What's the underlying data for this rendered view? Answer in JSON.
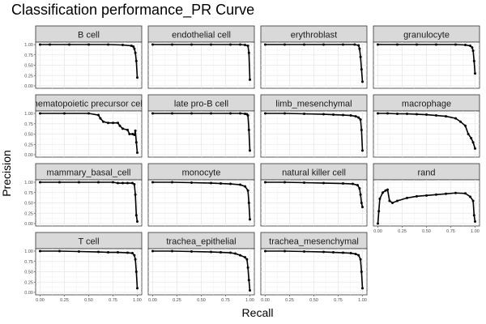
{
  "title": "Classification performance_PR Curve",
  "chart_data": {
    "type": "line",
    "title": "Classification performance_PR Curve",
    "xlabel": "Recall",
    "ylabel": "Precision",
    "xlim": [
      0,
      1
    ],
    "ylim": [
      0,
      1
    ],
    "x_ticks": [
      "0.00",
      "0.25",
      "0.50",
      "0.75",
      "1.00"
    ],
    "y_ticks": [
      "0.00",
      "0.25",
      "0.50",
      "0.75",
      "1.00"
    ],
    "grid": true,
    "facets": [
      {
        "name": "B cell",
        "x": [
          0,
          0.1,
          0.3,
          0.5,
          0.7,
          0.85,
          0.94,
          0.96,
          0.97,
          0.98,
          0.99,
          1.0
        ],
        "y": [
          1.0,
          1.0,
          1.0,
          1.0,
          1.0,
          0.99,
          0.97,
          0.95,
          0.9,
          0.8,
          0.6,
          0.2
        ]
      },
      {
        "name": "endothelial cell",
        "x": [
          0,
          0.2,
          0.4,
          0.6,
          0.8,
          0.9,
          0.95,
          0.98,
          0.99,
          1.0
        ],
        "y": [
          1.0,
          1.0,
          1.0,
          1.0,
          1.0,
          1.0,
          0.99,
          0.97,
          0.8,
          0.15
        ]
      },
      {
        "name": "erythroblast",
        "x": [
          0,
          0.2,
          0.4,
          0.6,
          0.8,
          0.92,
          0.96,
          0.97,
          0.98,
          0.99,
          1.0
        ],
        "y": [
          1.0,
          1.0,
          1.0,
          1.0,
          1.0,
          1.0,
          0.98,
          0.9,
          0.7,
          0.4,
          0.1
        ]
      },
      {
        "name": "granulocyte",
        "x": [
          0,
          0.2,
          0.4,
          0.6,
          0.8,
          0.9,
          0.95,
          0.97,
          0.98,
          0.99,
          1.0
        ],
        "y": [
          1.0,
          1.0,
          1.0,
          1.0,
          1.0,
          0.99,
          0.97,
          0.93,
          0.85,
          0.6,
          0.3
        ]
      },
      {
        "name": "hematopoietic precursor cell",
        "x": [
          0,
          0.25,
          0.5,
          0.6,
          0.62,
          0.65,
          0.7,
          0.75,
          0.8,
          0.82,
          0.85,
          0.9,
          0.92,
          0.95,
          0.97,
          0.98,
          0.99,
          1.0
        ],
        "y": [
          1.0,
          1.0,
          1.0,
          0.96,
          0.88,
          0.8,
          0.77,
          0.77,
          0.77,
          0.7,
          0.63,
          0.6,
          0.5,
          0.5,
          0.48,
          0.58,
          0.3,
          0.05
        ]
      },
      {
        "name": "late pro-B cell",
        "x": [
          0,
          0.2,
          0.4,
          0.6,
          0.8,
          0.9,
          0.95,
          0.97,
          0.98,
          0.99,
          1.0
        ],
        "y": [
          1.0,
          1.0,
          1.0,
          1.0,
          1.0,
          1.0,
          0.99,
          0.98,
          0.95,
          0.6,
          0.1
        ]
      },
      {
        "name": "limb_mesenchymal",
        "x": [
          0,
          0.2,
          0.4,
          0.6,
          0.7,
          0.8,
          0.88,
          0.93,
          0.96,
          0.98,
          0.99,
          1.0
        ],
        "y": [
          1.0,
          1.0,
          0.99,
          0.98,
          0.97,
          0.96,
          0.95,
          0.93,
          0.9,
          0.85,
          0.6,
          0.1
        ]
      },
      {
        "name": "macrophage",
        "x": [
          0,
          0.1,
          0.2,
          0.3,
          0.4,
          0.5,
          0.6,
          0.7,
          0.8,
          0.85,
          0.9,
          0.93,
          0.96,
          0.98,
          1.0
        ],
        "y": [
          1.0,
          1.0,
          0.99,
          0.99,
          0.98,
          0.97,
          0.95,
          0.93,
          0.88,
          0.8,
          0.7,
          0.5,
          0.4,
          0.3,
          0.15
        ]
      },
      {
        "name": "mammary_basal_cell",
        "x": [
          0,
          0.2,
          0.4,
          0.6,
          0.75,
          0.8,
          0.85,
          0.9,
          0.95,
          0.97,
          0.98,
          0.99,
          1.0
        ],
        "y": [
          1.0,
          1.0,
          1.0,
          1.0,
          1.0,
          0.98,
          0.98,
          0.98,
          0.98,
          0.95,
          0.7,
          0.2,
          0.05
        ]
      },
      {
        "name": "monocyte",
        "x": [
          0,
          0.2,
          0.4,
          0.6,
          0.7,
          0.8,
          0.9,
          0.95,
          0.98,
          0.99,
          1.0
        ],
        "y": [
          1.0,
          1.0,
          0.99,
          0.98,
          0.97,
          0.96,
          0.94,
          0.9,
          0.8,
          0.5,
          0.1
        ]
      },
      {
        "name": "natural killer cell",
        "x": [
          0,
          0.2,
          0.4,
          0.6,
          0.8,
          0.9,
          0.95,
          0.97,
          0.98,
          0.99,
          1.0
        ],
        "y": [
          1.0,
          1.0,
          0.99,
          0.98,
          0.97,
          0.96,
          0.93,
          0.85,
          0.7,
          0.5,
          0.4
        ]
      },
      {
        "name": "rand",
        "x": [
          0,
          0.01,
          0.02,
          0.05,
          0.08,
          0.1,
          0.12,
          0.15,
          0.2,
          0.3,
          0.4,
          0.5,
          0.6,
          0.7,
          0.8,
          0.9,
          0.95,
          0.98,
          0.99,
          1.0
        ],
        "y": [
          0.0,
          0.3,
          0.6,
          0.75,
          0.8,
          0.82,
          0.55,
          0.5,
          0.55,
          0.62,
          0.66,
          0.68,
          0.7,
          0.72,
          0.74,
          0.73,
          0.65,
          0.55,
          0.2,
          0.05
        ]
      },
      {
        "name": "T cell",
        "x": [
          0,
          0.2,
          0.4,
          0.6,
          0.7,
          0.8,
          0.9,
          0.95,
          0.97,
          0.98,
          0.99,
          1.0
        ],
        "y": [
          1.0,
          1.0,
          0.99,
          0.98,
          0.97,
          0.97,
          0.96,
          0.95,
          0.9,
          0.8,
          0.5,
          0.1
        ]
      },
      {
        "name": "trachea_epithelial",
        "x": [
          0,
          0.2,
          0.4,
          0.6,
          0.7,
          0.8,
          0.85,
          0.9,
          0.95,
          0.97,
          0.98,
          0.99,
          1.0
        ],
        "y": [
          1.0,
          1.0,
          0.99,
          0.98,
          0.97,
          0.96,
          0.94,
          0.9,
          0.85,
          0.8,
          0.6,
          0.3,
          0.05
        ]
      },
      {
        "name": "trachea_mesenchymal",
        "x": [
          0,
          0.2,
          0.4,
          0.6,
          0.7,
          0.8,
          0.88,
          0.93,
          0.96,
          0.98,
          0.99,
          1.0
        ],
        "y": [
          1.0,
          1.0,
          0.99,
          0.98,
          0.97,
          0.96,
          0.95,
          0.93,
          0.9,
          0.8,
          0.5,
          0.1
        ]
      }
    ]
  }
}
